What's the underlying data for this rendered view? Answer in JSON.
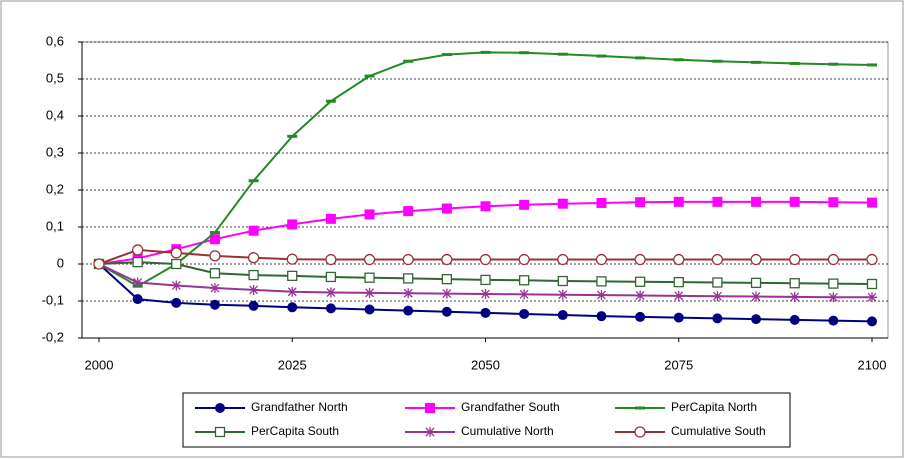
{
  "chart_data": {
    "type": "line",
    "x": [
      2000,
      2005,
      2010,
      2015,
      2020,
      2025,
      2030,
      2035,
      2040,
      2045,
      2050,
      2055,
      2060,
      2065,
      2070,
      2075,
      2080,
      2085,
      2090,
      2095,
      2100
    ],
    "xlim": [
      2000,
      2100
    ],
    "xticks": [
      2000,
      2025,
      2050,
      2075,
      2100
    ],
    "ylim": [
      -0.2,
      0.6
    ],
    "yticks": [
      {
        "value": -0.2,
        "label": "-0,2"
      },
      {
        "value": -0.1,
        "label": "-0,1"
      },
      0,
      {
        "value": 0.1,
        "label": "0,1"
      },
      {
        "value": 0.2,
        "label": "0,2"
      },
      {
        "value": 0.3,
        "label": "0,3"
      },
      {
        "value": 0.4,
        "label": "0,4"
      },
      {
        "value": 0.5,
        "label": "0,5"
      },
      {
        "value": 0.6,
        "label": "0,6"
      }
    ],
    "grid": true,
    "series": [
      {
        "name": "Grandfather North",
        "color": "#000080",
        "marker": "circle",
        "values": [
          0,
          -0.095,
          -0.105,
          -0.11,
          -0.113,
          -0.117,
          -0.12,
          -0.123,
          -0.126,
          -0.129,
          -0.132,
          -0.135,
          -0.138,
          -0.141,
          -0.143,
          -0.145,
          -0.147,
          -0.149,
          -0.151,
          -0.153,
          -0.155
        ]
      },
      {
        "name": "Grandfather South",
        "color": "#ff00ff",
        "marker": "square",
        "values": [
          0,
          0.015,
          0.04,
          0.067,
          0.09,
          0.107,
          0.122,
          0.134,
          0.143,
          0.15,
          0.156,
          0.16,
          0.163,
          0.165,
          0.167,
          0.168,
          0.168,
          0.168,
          0.168,
          0.167,
          0.166
        ]
      },
      {
        "name": "PerCapita North",
        "color": "#228b22",
        "marker": "dash",
        "values": [
          0,
          -0.06,
          0.0,
          0.085,
          0.225,
          0.345,
          0.44,
          0.508,
          0.548,
          0.566,
          0.572,
          0.571,
          0.567,
          0.562,
          0.557,
          0.552,
          0.548,
          0.545,
          0.542,
          0.54,
          0.538
        ]
      },
      {
        "name": "PerCapita South",
        "color": "#336633",
        "marker": "square-open",
        "values": [
          0,
          0.005,
          0.0,
          -0.025,
          -0.03,
          -0.032,
          -0.035,
          -0.037,
          -0.039,
          -0.041,
          -0.043,
          -0.044,
          -0.046,
          -0.047,
          -0.048,
          -0.049,
          -0.05,
          -0.051,
          -0.052,
          -0.053,
          -0.054
        ]
      },
      {
        "name": "Cumulative North",
        "color": "#993399",
        "marker": "star",
        "values": [
          0,
          -0.05,
          -0.058,
          -0.065,
          -0.07,
          -0.075,
          -0.077,
          -0.078,
          -0.079,
          -0.08,
          -0.081,
          -0.082,
          -0.083,
          -0.084,
          -0.085,
          -0.086,
          -0.087,
          -0.088,
          -0.089,
          -0.09,
          -0.09
        ]
      },
      {
        "name": "Cumulative South",
        "color": "#993333",
        "marker": "circle-open",
        "values": [
          0,
          0.038,
          0.03,
          0.022,
          0.017,
          0.013,
          0.012,
          0.012,
          0.012,
          0.012,
          0.012,
          0.012,
          0.012,
          0.012,
          0.012,
          0.012,
          0.012,
          0.012,
          0.012,
          0.012,
          0.012
        ]
      }
    ]
  }
}
